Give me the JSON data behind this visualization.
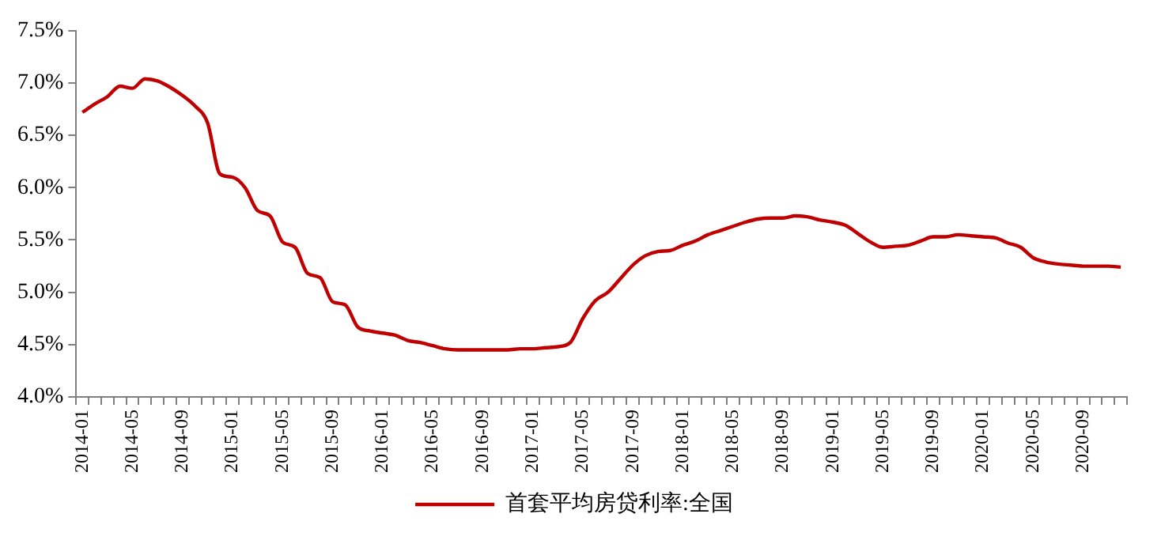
{
  "chart_data": {
    "type": "line",
    "categories": [
      "2014-01",
      null,
      null,
      null,
      "2014-05",
      null,
      null,
      null,
      "2014-09",
      null,
      null,
      null,
      "2015-01",
      null,
      null,
      null,
      "2015-05",
      null,
      null,
      null,
      "2015-09",
      null,
      null,
      null,
      "2016-01",
      null,
      null,
      null,
      "2016-05",
      null,
      null,
      null,
      "2016-09",
      null,
      null,
      null,
      "2017-01",
      null,
      null,
      null,
      "2017-05",
      null,
      null,
      null,
      "2017-09",
      null,
      null,
      null,
      "2018-01",
      null,
      null,
      null,
      "2018-05",
      null,
      null,
      null,
      "2018-09",
      null,
      null,
      null,
      "2019-01",
      null,
      null,
      null,
      "2019-05",
      null,
      null,
      null,
      "2019-09",
      null,
      null,
      null,
      "2020-01",
      null,
      null,
      null,
      "2020-05",
      null,
      null,
      null,
      "2020-09",
      null,
      null,
      null
    ],
    "series": [
      {
        "name": "首套平均房贷利率:全国",
        "color": "#c00000",
        "values": [
          6.72,
          6.8,
          6.87,
          6.97,
          6.95,
          7.04,
          7.02,
          6.96,
          6.88,
          6.78,
          6.62,
          6.13,
          6.1,
          6.0,
          5.78,
          5.73,
          5.48,
          5.43,
          5.18,
          5.14,
          4.91,
          4.88,
          4.67,
          4.63,
          4.61,
          4.59,
          4.54,
          4.52,
          4.49,
          4.46,
          4.45,
          4.45,
          4.45,
          4.45,
          4.45,
          4.46,
          4.46,
          4.47,
          4.48,
          4.52,
          4.75,
          4.92,
          5.0,
          5.13,
          5.26,
          5.35,
          5.39,
          5.4,
          5.45,
          5.49,
          5.55,
          5.59,
          5.63,
          5.67,
          5.7,
          5.71,
          5.71,
          5.73,
          5.72,
          5.69,
          5.67,
          5.64,
          5.56,
          5.48,
          5.43,
          5.44,
          5.45,
          5.49,
          5.53,
          5.53,
          5.55,
          5.54,
          5.53,
          5.52,
          5.47,
          5.43,
          5.33,
          5.29,
          5.27,
          5.26,
          5.25,
          5.25,
          5.25,
          5.24
        ]
      }
    ],
    "ylim": [
      4.0,
      7.5
    ],
    "yticks": [
      {
        "value": 4.0,
        "label": "4.0%"
      },
      {
        "value": 4.5,
        "label": "4.5%"
      },
      {
        "value": 5.0,
        "label": "5.0%"
      },
      {
        "value": 5.5,
        "label": "5.5%"
      },
      {
        "value": 6.0,
        "label": "6.0%"
      },
      {
        "value": 6.5,
        "label": "6.5%"
      },
      {
        "value": 7.0,
        "label": "7.0%"
      },
      {
        "value": 7.5,
        "label": "7.5%"
      }
    ],
    "grid": false,
    "legend": "bottom",
    "marker": "none",
    "line_style": "solid"
  }
}
